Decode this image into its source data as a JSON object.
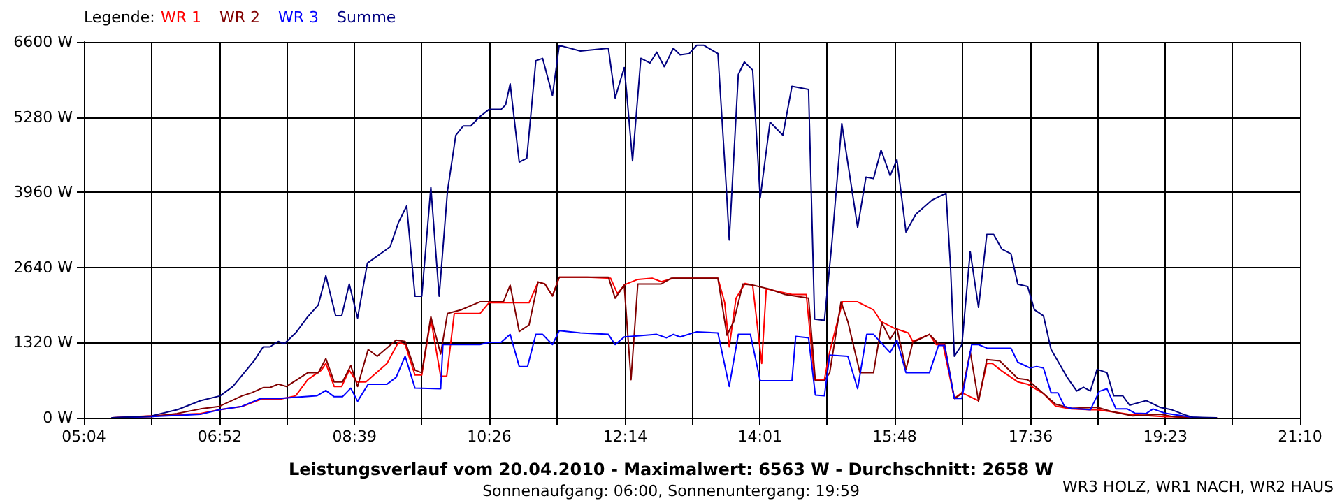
{
  "chart_data": {
    "type": "line",
    "title": "Leistungsverlauf vom 20.04.2010 - Maximalwert: 6563 W - Durchschnitt: 2658 W",
    "subtitle": "Sonnenaufgang: 06:00, Sonnenuntergang: 19:59",
    "legend_title": "Legende:",
    "legend": "top left",
    "grid": true,
    "marker": "none",
    "line_style": "solid",
    "annotations": [
      "WR3 HOLZ, WR1 NACH, WR2 HAUS"
    ],
    "xlim": [
      5.0667,
      21.1667
    ],
    "xticks": [
      {
        "value": 5.0667,
        "label": "05:04"
      },
      {
        "value": 5.961,
        "label": null
      },
      {
        "value": 6.8667,
        "label": "06:52"
      },
      {
        "value": 7.75,
        "label": null
      },
      {
        "value": 8.65,
        "label": "08:39"
      },
      {
        "value": 9.539,
        "label": null
      },
      {
        "value": 10.4333,
        "label": "10:26"
      },
      {
        "value": 11.328,
        "label": null
      },
      {
        "value": 12.2333,
        "label": "12:14"
      },
      {
        "value": 13.117,
        "label": null
      },
      {
        "value": 14.0167,
        "label": "14:01"
      },
      {
        "value": 14.906,
        "label": null
      },
      {
        "value": 15.8,
        "label": "15:48"
      },
      {
        "value": 16.694,
        "label": null
      },
      {
        "value": 17.6,
        "label": "17:36"
      },
      {
        "value": 18.483,
        "label": null
      },
      {
        "value": 19.3833,
        "label": "19:23"
      },
      {
        "value": 20.272,
        "label": null
      },
      {
        "value": 21.1667,
        "label": "21:10"
      }
    ],
    "ylim": [
      0,
      6600
    ],
    "yticks": [
      {
        "value": 0,
        "label": "0 W"
      },
      {
        "value": 1320,
        "label": "1320 W"
      },
      {
        "value": 2640,
        "label": "2640 W"
      },
      {
        "value": 3960,
        "label": "3960 W"
      },
      {
        "value": 5280,
        "label": "5280 W"
      },
      {
        "value": 6600,
        "label": "6600 W"
      }
    ],
    "series": [
      {
        "name": "WR 1",
        "color": "#ff0000",
        "x": [
          5.44,
          6.61,
          6.86,
          7.16,
          7.41,
          7.66,
          7.87,
          8.03,
          8.21,
          8.27,
          8.38,
          8.48,
          8.58,
          8.68,
          8.8,
          9.08,
          9.23,
          9.32,
          9.45,
          9.54,
          9.66,
          9.79,
          9.87,
          9.97,
          10.06,
          10.31,
          10.43,
          10.96,
          11.08,
          11.17,
          11.27,
          11.36,
          11.73,
          12.04,
          12.13,
          12.22,
          12.25,
          12.4,
          12.59,
          12.71,
          12.87,
          13.46,
          13.55,
          13.61,
          13.7,
          13.82,
          13.92,
          14.04,
          14.1,
          14.44,
          14.63,
          14.74,
          14.87,
          14.94,
          15.11,
          15.31,
          15.52,
          15.62,
          15.65,
          15.8,
          15.98,
          16.04,
          16.26,
          16.35,
          16.44,
          16.59,
          16.69,
          16.91,
          17.02,
          17.09,
          17.22,
          17.43,
          17.56,
          17.77,
          17.93,
          18.14,
          18.39,
          18.48,
          18.7,
          18.91,
          19.38,
          19.5,
          19.69,
          20.06
        ],
        "values": [
          0,
          75,
          140,
          200,
          325,
          325,
          385,
          670,
          835,
          955,
          550,
          550,
          835,
          630,
          630,
          955,
          1325,
          1285,
          750,
          750,
          1735,
          730,
          730,
          1830,
          1830,
          1830,
          2020,
          2020,
          2385,
          2350,
          2140,
          2470,
          2470,
          2450,
          2180,
          2330,
          2350,
          2430,
          2450,
          2390,
          2450,
          2450,
          2020,
          1245,
          2100,
          2360,
          2330,
          955,
          2265,
          2165,
          2165,
          670,
          670,
          1160,
          2035,
          2035,
          1895,
          1690,
          1670,
          1570,
          1490,
          1340,
          1465,
          1285,
          1285,
          340,
          440,
          300,
          955,
          955,
          820,
          630,
          590,
          425,
          205,
          155,
          140,
          140,
          100,
          57,
          17,
          17,
          0,
          0
        ]
      },
      {
        "name": "WR 2",
        "color": "#800000",
        "x": [
          5.44,
          5.96,
          6.3,
          6.61,
          6.86,
          7.16,
          7.29,
          7.44,
          7.53,
          7.64,
          7.75,
          8.03,
          8.17,
          8.27,
          8.38,
          8.49,
          8.6,
          8.69,
          8.83,
          8.95,
          9.2,
          9.32,
          9.45,
          9.54,
          9.66,
          9.79,
          9.88,
          10.06,
          10.31,
          10.62,
          10.71,
          10.83,
          10.96,
          11.08,
          11.17,
          11.27,
          11.36,
          12.01,
          12.1,
          12.22,
          12.31,
          12.4,
          12.53,
          12.71,
          12.84,
          13.46,
          13.58,
          13.67,
          13.79,
          13.92,
          14.13,
          14.35,
          14.66,
          14.75,
          14.87,
          14.94,
          15.09,
          15.18,
          15.34,
          15.52,
          15.63,
          15.74,
          15.83,
          15.95,
          16.04,
          16.26,
          16.38,
          16.46,
          16.59,
          16.69,
          16.8,
          16.91,
          17.02,
          17.19,
          17.43,
          17.56,
          17.93,
          18.14,
          18.48,
          18.7,
          18.95,
          19.32,
          19.5,
          19.75
        ],
        "values": [
          0,
          17,
          75,
          155,
          200,
          385,
          440,
          530,
          530,
          590,
          550,
          790,
          790,
          1040,
          630,
          630,
          915,
          550,
          1200,
          1080,
          1365,
          1340,
          835,
          790,
          1775,
          1120,
          1830,
          1895,
          2035,
          2035,
          2330,
          1515,
          1630,
          2385,
          2350,
          2140,
          2470,
          2470,
          2100,
          2330,
          670,
          2350,
          2350,
          2350,
          2450,
          2450,
          1450,
          1690,
          2350,
          2330,
          2265,
          2165,
          2100,
          650,
          650,
          790,
          2035,
          1690,
          790,
          790,
          1670,
          1380,
          1570,
          850,
          1325,
          1465,
          1300,
          1300,
          340,
          425,
          1160,
          290,
          1020,
          1000,
          690,
          670,
          240,
          165,
          185,
          100,
          35,
          60,
          17,
          0
        ]
      },
      {
        "name": "WR 3",
        "color": "#0000ff",
        "x": [
          5.44,
          5.96,
          6.61,
          6.86,
          7.16,
          7.41,
          7.66,
          8.15,
          8.27,
          8.38,
          8.49,
          8.6,
          8.69,
          8.83,
          9.08,
          9.2,
          9.32,
          9.45,
          9.79,
          9.82,
          10.31,
          10.43,
          10.59,
          10.71,
          10.83,
          10.94,
          11.05,
          11.14,
          11.27,
          11.36,
          11.64,
          12.01,
          12.1,
          12.22,
          12.65,
          12.78,
          12.87,
          12.96,
          13.18,
          13.46,
          13.61,
          13.73,
          13.89,
          14.02,
          14.44,
          14.49,
          14.66,
          14.75,
          14.87,
          14.94,
          15.18,
          15.31,
          15.43,
          15.52,
          15.74,
          15.83,
          15.95,
          16.26,
          16.38,
          16.46,
          16.59,
          16.69,
          16.82,
          16.91,
          17.03,
          17.34,
          17.43,
          17.59,
          17.68,
          17.77,
          17.87,
          17.96,
          18.05,
          18.14,
          18.39,
          18.51,
          18.61,
          18.73,
          18.88,
          18.98,
          19.13,
          19.22,
          19.38,
          19.63,
          19.75,
          19.87
        ],
        "values": [
          0,
          20,
          60,
          140,
          200,
          340,
          340,
          385,
          480,
          370,
          370,
          520,
          290,
          590,
          590,
          710,
          1080,
          520,
          510,
          1285,
          1285,
          1325,
          1325,
          1465,
          900,
          900,
          1465,
          1465,
          1285,
          1530,
          1490,
          1465,
          1285,
          1420,
          1465,
          1405,
          1465,
          1420,
          1510,
          1490,
          550,
          1465,
          1465,
          650,
          650,
          1430,
          1405,
          400,
          385,
          1100,
          1080,
          510,
          1465,
          1465,
          1145,
          1365,
          790,
          790,
          1270,
          1270,
          340,
          340,
          1285,
          1285,
          1220,
          1220,
          975,
          875,
          900,
          875,
          440,
          440,
          195,
          165,
          140,
          465,
          510,
          155,
          155,
          80,
          75,
          155,
          80,
          30,
          10,
          0
        ]
      },
      {
        "name": "Summe",
        "color": "#000080",
        "x": [
          5.44,
          5.96,
          6.3,
          6.61,
          6.87,
          7.04,
          7.32,
          7.44,
          7.53,
          7.64,
          7.72,
          7.87,
          8.03,
          8.17,
          8.27,
          8.4,
          8.48,
          8.58,
          8.69,
          8.82,
          9.12,
          9.23,
          9.34,
          9.45,
          9.54,
          9.66,
          9.77,
          9.88,
          9.99,
          10.09,
          10.19,
          10.31,
          10.43,
          10.59,
          10.65,
          10.71,
          10.83,
          10.93,
          11.05,
          11.14,
          11.27,
          11.36,
          11.64,
          12.01,
          12.1,
          12.22,
          12.25,
          12.33,
          12.44,
          12.56,
          12.65,
          12.75,
          12.87,
          12.96,
          13.08,
          13.18,
          13.27,
          13.46,
          13.57,
          13.61,
          13.73,
          13.81,
          13.92,
          14.02,
          14.15,
          14.32,
          14.44,
          14.66,
          14.74,
          14.87,
          14.97,
          15.1,
          15.31,
          15.42,
          15.52,
          15.62,
          15.74,
          15.83,
          15.95,
          16.08,
          16.29,
          16.48,
          16.54,
          16.59,
          16.69,
          16.8,
          16.91,
          17.02,
          17.11,
          17.22,
          17.34,
          17.43,
          17.56,
          17.65,
          17.77,
          17.87,
          18.08,
          18.21,
          18.3,
          18.39,
          18.48,
          18.61,
          18.7,
          18.82,
          18.91,
          19.13,
          19.32,
          19.47,
          19.63,
          19.75,
          20.06
        ],
        "values": [
          0,
          32,
          140,
          300,
          385,
          550,
          1000,
          1245,
          1245,
          1340,
          1300,
          1490,
          1775,
          1980,
          2495,
          1790,
          1790,
          2350,
          1750,
          2715,
          3000,
          3425,
          3720,
          2135,
          2135,
          4050,
          2135,
          3980,
          4960,
          5125,
          5125,
          5290,
          5415,
          5415,
          5495,
          5865,
          4490,
          4555,
          6270,
          6310,
          5660,
          6540,
          6440,
          6490,
          5617,
          6150,
          5740,
          4513,
          6312,
          6230,
          6420,
          6165,
          6490,
          6372,
          6395,
          6542,
          6542,
          6395,
          4065,
          3123,
          6027,
          6248,
          6108,
          3860,
          5193,
          4962,
          5821,
          5765,
          1734,
          1710,
          3083,
          5168,
          3343,
          4226,
          4200,
          4702,
          4251,
          4530,
          3262,
          3574,
          3819,
          3942,
          2632,
          1079,
          1283,
          2919,
          1938,
          3221,
          3221,
          2960,
          2877,
          2347,
          2306,
          1896,
          1790,
          1202,
          717,
          470,
          536,
          470,
          851,
          792,
          385,
          385,
          221,
          302,
          180,
          140,
          57,
          8,
          0
        ]
      }
    ]
  }
}
